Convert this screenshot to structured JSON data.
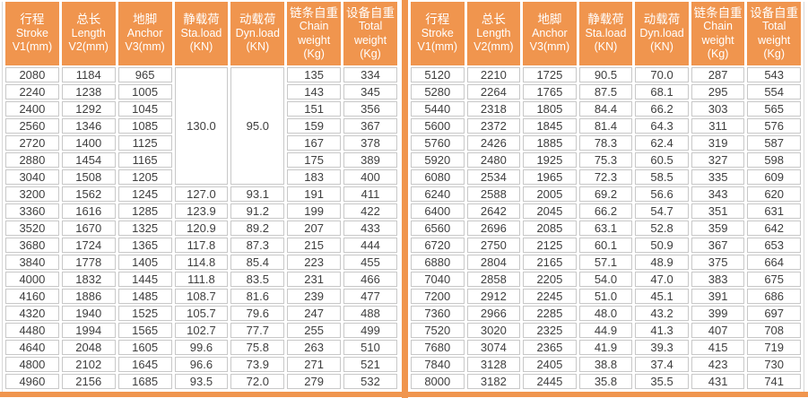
{
  "theme": {
    "accent_orange": "#F0954E",
    "cell_border_gray": "#C8C8C8",
    "cell_text_gray": "#3E3E3E",
    "header_text": "#FFFFFF"
  },
  "columns": [
    {
      "lines": [
        "行程",
        "Stroke",
        "V1(mm)"
      ]
    },
    {
      "lines": [
        "总长",
        "Length",
        "V2(mm)"
      ]
    },
    {
      "lines": [
        "地脚",
        "Anchor",
        "V3(mm)"
      ]
    },
    {
      "lines": [
        "静载荷",
        "Sta.load",
        "(KN)"
      ]
    },
    {
      "lines": [
        "动载荷",
        "Dyn.load",
        "(KN)"
      ]
    },
    {
      "lines": [
        "链条自重",
        "Chain",
        "weight",
        "(Kg)"
      ]
    },
    {
      "lines": [
        "设备自重",
        "Total",
        "weight",
        "(Kg)"
      ]
    }
  ],
  "left_table": {
    "merged_note": "Sta.load 130.0 and Dyn.load 95.0 span first 7 rows",
    "rows": [
      [
        "2080",
        "1184",
        "965",
        {
          "v": "130.0",
          "rs": 7
        },
        {
          "v": "95.0",
          "rs": 7
        },
        "135",
        "334"
      ],
      [
        "2240",
        "1238",
        "1005",
        null,
        null,
        "143",
        "345"
      ],
      [
        "2400",
        "1292",
        "1045",
        null,
        null,
        "151",
        "356"
      ],
      [
        "2560",
        "1346",
        "1085",
        null,
        null,
        "159",
        "367"
      ],
      [
        "2720",
        "1400",
        "1125",
        null,
        null,
        "167",
        "378"
      ],
      [
        "2880",
        "1454",
        "1165",
        null,
        null,
        "175",
        "389"
      ],
      [
        "3040",
        "1508",
        "1205",
        null,
        null,
        "183",
        "400"
      ],
      [
        "3200",
        "1562",
        "1245",
        "127.0",
        "93.1",
        "191",
        "411"
      ],
      [
        "3360",
        "1616",
        "1285",
        "123.9",
        "91.2",
        "199",
        "422"
      ],
      [
        "3520",
        "1670",
        "1325",
        "120.9",
        "89.2",
        "207",
        "433"
      ],
      [
        "3680",
        "1724",
        "1365",
        "117.8",
        "87.3",
        "215",
        "444"
      ],
      [
        "3840",
        "1778",
        "1405",
        "114.8",
        "85.4",
        "223",
        "455"
      ],
      [
        "4000",
        "1832",
        "1445",
        "111.8",
        "83.5",
        "231",
        "466"
      ],
      [
        "4160",
        "1886",
        "1485",
        "108.7",
        "81.6",
        "239",
        "477"
      ],
      [
        "4320",
        "1940",
        "1525",
        "105.7",
        "79.6",
        "247",
        "488"
      ],
      [
        "4480",
        "1994",
        "1565",
        "102.7",
        "77.7",
        "255",
        "499"
      ],
      [
        "4640",
        "2048",
        "1605",
        "99.6",
        "75.8",
        "263",
        "510"
      ],
      [
        "4800",
        "2102",
        "1645",
        "96.6",
        "73.9",
        "271",
        "521"
      ],
      [
        "4960",
        "2156",
        "1685",
        "93.5",
        "72.0",
        "279",
        "532"
      ]
    ]
  },
  "right_table": {
    "rows": [
      [
        "5120",
        "2210",
        "1725",
        "90.5",
        "70.0",
        "287",
        "543"
      ],
      [
        "5280",
        "2264",
        "1765",
        "87.5",
        "68.1",
        "295",
        "554"
      ],
      [
        "5440",
        "2318",
        "1805",
        "84.4",
        "66.2",
        "303",
        "565"
      ],
      [
        "5600",
        "2372",
        "1845",
        "81.4",
        "64.3",
        "311",
        "576"
      ],
      [
        "5760",
        "2426",
        "1885",
        "78.3",
        "62.4",
        "319",
        "587"
      ],
      [
        "5920",
        "2480",
        "1925",
        "75.3",
        "60.5",
        "327",
        "598"
      ],
      [
        "6080",
        "2534",
        "1965",
        "72.3",
        "58.5",
        "335",
        "609"
      ],
      [
        "6240",
        "2588",
        "2005",
        "69.2",
        "56.6",
        "343",
        "620"
      ],
      [
        "6400",
        "2642",
        "2045",
        "66.2",
        "54.7",
        "351",
        "631"
      ],
      [
        "6560",
        "2696",
        "2085",
        "63.1",
        "52.8",
        "359",
        "642"
      ],
      [
        "6720",
        "2750",
        "2125",
        "60.1",
        "50.9",
        "367",
        "653"
      ],
      [
        "6880",
        "2804",
        "2165",
        "57.1",
        "48.9",
        "375",
        "664"
      ],
      [
        "7040",
        "2858",
        "2205",
        "54.0",
        "47.0",
        "383",
        "675"
      ],
      [
        "7200",
        "2912",
        "2245",
        "51.0",
        "45.1",
        "391",
        "686"
      ],
      [
        "7360",
        "2966",
        "2285",
        "48.0",
        "43.2",
        "399",
        "697"
      ],
      [
        "7520",
        "3020",
        "2325",
        "44.9",
        "41.3",
        "407",
        "708"
      ],
      [
        "7680",
        "3074",
        "2365",
        "41.9",
        "39.3",
        "415",
        "719"
      ],
      [
        "7840",
        "3128",
        "2405",
        "38.8",
        "37.4",
        "423",
        "730"
      ],
      [
        "8000",
        "3182",
        "2445",
        "35.8",
        "35.5",
        "431",
        "741"
      ]
    ]
  }
}
